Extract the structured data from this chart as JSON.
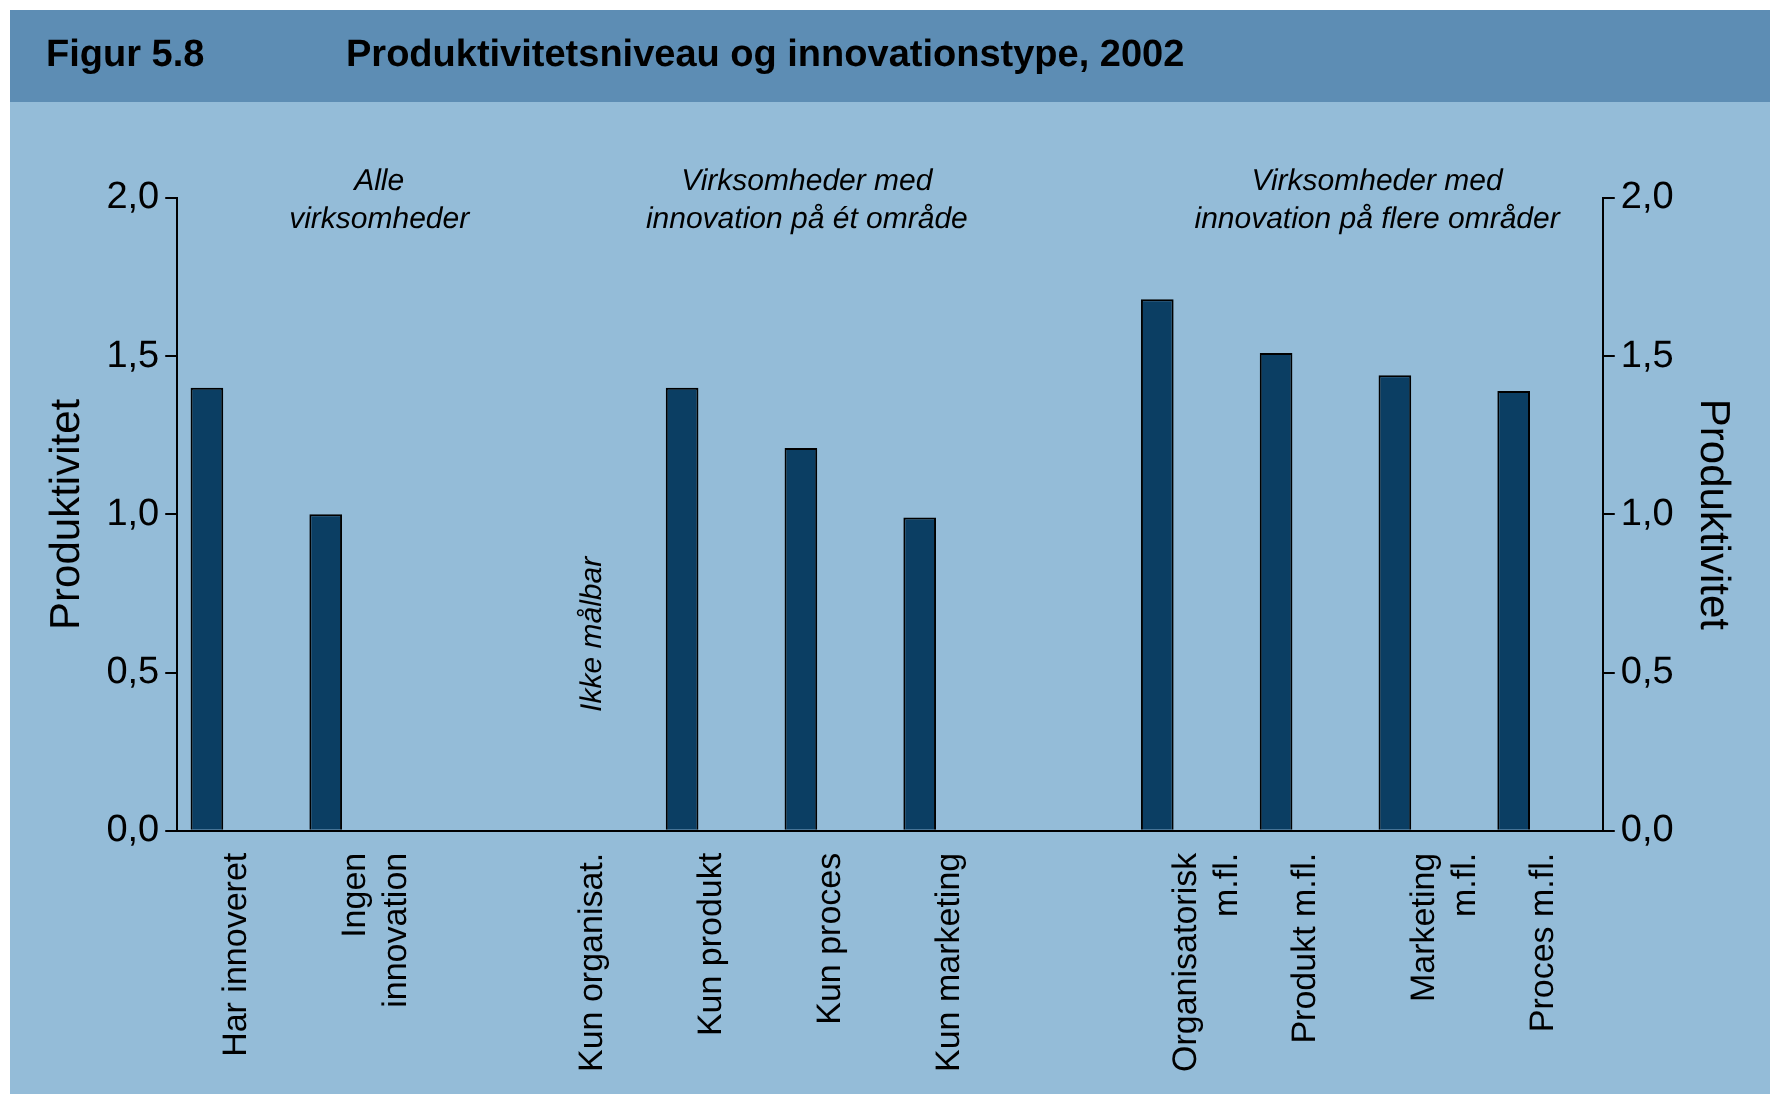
{
  "chart_data": {
    "type": "bar",
    "subtitle": "Figur 5.8",
    "title": "Produktivitetsniveau og innovationstype, 2002",
    "categories": [
      "Har innoveret",
      "Ingen\ninnovation",
      null,
      "Kun organisat.",
      "Kun produkt",
      "Kun proces",
      "Kun marketing",
      null,
      "Organisatorisk\nm.fl.",
      "Produkt m.fl.",
      "Marketing\nm.fl.",
      "Proces m.fl."
    ],
    "values": [
      1.4,
      1.0,
      null,
      null,
      1.4,
      1.21,
      0.99,
      null,
      1.68,
      1.51,
      1.44,
      1.39
    ],
    "color": "#0b3e63",
    "ylabel": "Produktivitet",
    "y2label": "Produktivitet",
    "ylim": [
      0,
      2
    ],
    "yticks": [
      {
        "value": 0,
        "label": "0,0"
      },
      {
        "value": 0.5,
        "label": "0,5"
      },
      {
        "value": 1,
        "label": "1,0"
      },
      {
        "value": 1.5,
        "label": "1,5"
      },
      {
        "value": 2,
        "label": "2,0"
      }
    ],
    "y2lim": [
      0,
      2
    ],
    "y2ticks": [
      {
        "value": 0,
        "label": "0,0"
      },
      {
        "value": 0.5,
        "label": "0,5"
      },
      {
        "value": 1,
        "label": "1,0"
      },
      {
        "value": 1.5,
        "label": "1,5"
      },
      {
        "value": 2,
        "label": "2,0"
      }
    ],
    "annotations": [
      "Alle\nvirksomheder",
      "Virksomheder med\ninnovation på ét område",
      "Virksomheder med\ninnovation på flere områder",
      "Ikke målbar"
    ],
    "legend": false
  }
}
